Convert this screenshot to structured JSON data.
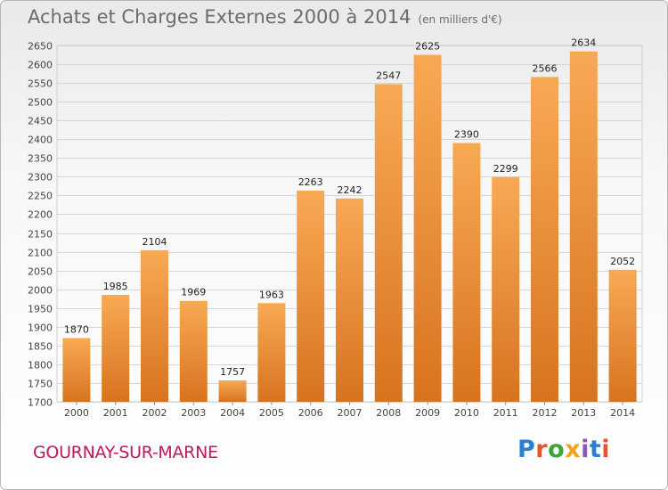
{
  "header": {
    "title": "Achats et Charges Externes 2000 à 2014",
    "subtitle": "(en milliers d'€)"
  },
  "footer": {
    "city": "GOURNAY-SUR-MARNE",
    "logo": "Proxiti"
  },
  "colors": {
    "bar_light": "#f7a54e",
    "bar_dark": "#d8731f",
    "city_text": "#c2185b"
  },
  "chart_data": {
    "type": "bar",
    "title": "Achats et Charges Externes 2000 à 2014",
    "subtitle": "(en milliers d'€)",
    "xlabel": "",
    "ylabel": "",
    "categories": [
      "2000",
      "2001",
      "2002",
      "2003",
      "2004",
      "2005",
      "2006",
      "2007",
      "2008",
      "2009",
      "2010",
      "2011",
      "2012",
      "2013",
      "2014"
    ],
    "values": [
      1870,
      1985,
      2104,
      1969,
      1757,
      1963,
      2263,
      2242,
      2547,
      2625,
      2390,
      2299,
      2566,
      2634,
      2052
    ],
    "ylim": [
      1700,
      2650
    ],
    "ytick_step": 50,
    "grid": true,
    "legend": "none"
  }
}
